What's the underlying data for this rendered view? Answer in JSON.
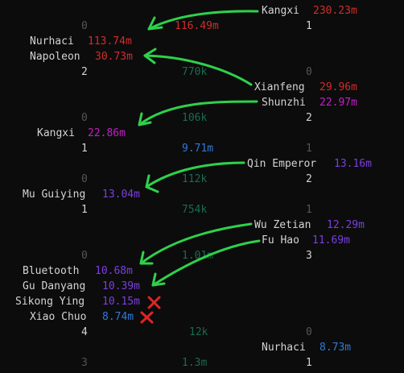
{
  "board": {
    "left": [
      {
        "name": "Nurhaci",
        "value": "113.74m",
        "color": "#d42b2b"
      },
      {
        "name": "Napoleon",
        "value": "30.73m",
        "color": "#d42b2b"
      },
      {
        "name": "Kangxi",
        "value": "22.86m",
        "color": "#c51fc5"
      },
      {
        "name": "Mu Guiying",
        "value": "13.04m",
        "color": "#7b3fe0"
      },
      {
        "name": "Bluetooth",
        "value": "10.68m",
        "color": "#7b3fe0"
      },
      {
        "name": "Gu Danyang",
        "value": "10.39m",
        "color": "#7b3fe0"
      },
      {
        "name": "Sikong Ying",
        "value": "10.15m",
        "color": "#7b3fe0"
      },
      {
        "name": "Xiao Chuo",
        "value": "8.74m",
        "color": "#2f7ad8"
      }
    ],
    "right": [
      {
        "name": "Kangxi",
        "value": "230.23m",
        "color": "#d42b2b"
      },
      {
        "name": "Xianfeng",
        "value": "29.96m",
        "color": "#d42b2b"
      },
      {
        "name": "Shunzhi",
        "value": "22.97m",
        "color": "#c51fc5"
      },
      {
        "name": "Qin Emperor",
        "value": "13.16m",
        "color": "#7b3fe0"
      },
      {
        "name": "Wu Zetian",
        "value": "12.29m",
        "color": "#7b3fe0"
      },
      {
        "name": "Fu Hao",
        "value": "11.69m",
        "color": "#7b3fe0"
      },
      {
        "name": "Nurhaci",
        "value": "8.73m",
        "color": "#2f7ad8"
      }
    ],
    "middle": [
      "116.49m",
      "770k",
      "106k",
      "9.71m",
      "112k",
      "754k",
      "1.01m",
      "12k",
      "1.3m"
    ],
    "left_counts": [
      "0",
      "2",
      "0",
      "1",
      "0",
      "1",
      "0",
      "4",
      "3"
    ],
    "right_counts": [
      "1",
      "0",
      "2",
      "1",
      "2",
      "1",
      "3",
      "0",
      "1"
    ]
  },
  "marks": {
    "arrow_color": "#2ed14b",
    "x_color": "#e12424",
    "x_icon": "cross-mark-icon"
  }
}
